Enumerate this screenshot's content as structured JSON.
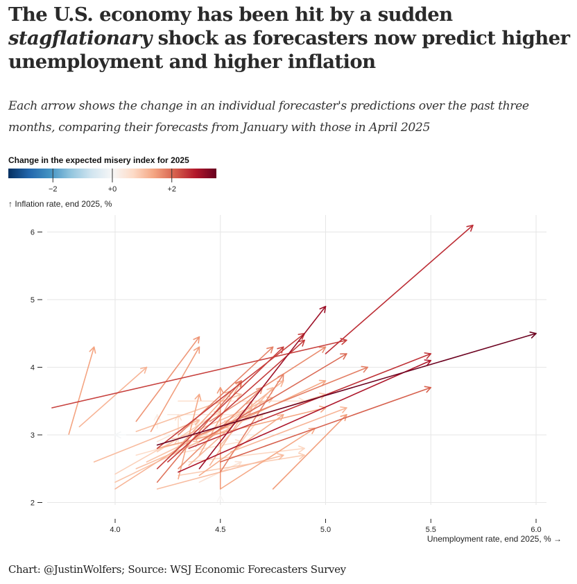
{
  "header": {
    "title_part1": "The U.S. economy has been hit by a sudden",
    "title_italic": "stagflationary",
    "title_part2": " shock as forecasters now predict higher unemployment and higher inflation",
    "subtitle": "Each arrow shows the change in an individual forecaster's predictions over the past three months, comparing their forecasts from January with those in April 2025"
  },
  "footer": {
    "credit": "Chart: @JustinWolfers; Source: WSJ Economic Forecasters Survey"
  },
  "chart_data": {
    "type": "scatter",
    "subtype": "arrows",
    "title": "The U.S. economy has been hit by a sudden stagflationary shock as forecasters now predict higher unemployment and higher inflation",
    "xlabel": "Unemployment rate, end 2025, % →",
    "ylabel": "↑ Inflation rate, end 2025, %",
    "xlim": [
      3.65,
      6.05
    ],
    "ylim": [
      1.9,
      6.2
    ],
    "x_ticks": [
      4.0,
      4.5,
      5.0,
      5.5,
      6.0
    ],
    "x_tick_labels": [
      "4.0",
      "4.5",
      "5.0",
      "5.5",
      "6.0"
    ],
    "y_ticks": [
      2,
      3,
      4,
      5,
      6
    ],
    "y_tick_labels": [
      "2",
      "3",
      "4",
      "5",
      "6"
    ],
    "grid": true,
    "color_legend": {
      "title": "Change in the expected misery index for 2025",
      "domain": [
        -3.5,
        3.5
      ],
      "scheme": "RdBu (reversed)",
      "stops": [
        "#053061",
        "#2166ac",
        "#4393c3",
        "#92c5de",
        "#d1e5f0",
        "#f7f7f7",
        "#fddbc7",
        "#f4a582",
        "#d6604d",
        "#b2182b",
        "#67001f"
      ],
      "ticks": [
        -2,
        0,
        2
      ],
      "tick_labels": [
        "−2",
        "+0",
        "+2"
      ]
    },
    "arrows_note": "Each arrow: from January forecast [x0,y0] to April forecast [x1,y1]; color = change in misery index (Δunemployment + Δinflation)",
    "arrows": [
      {
        "x0": 3.7,
        "y0": 3.4,
        "x1": 5.1,
        "y1": 4.4
      },
      {
        "x0": 3.78,
        "y0": 3.01,
        "x1": 3.9,
        "y1": 4.3
      },
      {
        "x0": 3.83,
        "y0": 3.12,
        "x1": 4.15,
        "y1": 4.0
      },
      {
        "x0": 4.1,
        "y0": 3.2,
        "x1": 4.4,
        "y1": 4.45
      },
      {
        "x0": 4.17,
        "y0": 3.05,
        "x1": 4.4,
        "y1": 4.3
      },
      {
        "x0": 3.9,
        "y0": 2.6,
        "x1": 4.4,
        "y1": 3.22
      },
      {
        "x0": 4.0,
        "y0": 2.2,
        "x1": 4.4,
        "y1": 3.0
      },
      {
        "x0": 4.0,
        "y0": 2.3,
        "x1": 4.4,
        "y1": 2.9
      },
      {
        "x0": 4.0,
        "y0": 2.42,
        "x1": 4.3,
        "y1": 2.95
      },
      {
        "x0": 4.1,
        "y0": 2.5,
        "x1": 4.55,
        "y1": 3.1
      },
      {
        "x0": 4.1,
        "y0": 2.7,
        "x1": 4.45,
        "y1": 3.0
      },
      {
        "x0": 4.2,
        "y0": 2.3,
        "x1": 4.6,
        "y1": 3.8
      },
      {
        "x0": 4.2,
        "y0": 2.5,
        "x1": 4.8,
        "y1": 4.3
      },
      {
        "x0": 4.2,
        "y0": 2.8,
        "x1": 4.9,
        "y1": 4.5
      },
      {
        "x0": 4.25,
        "y0": 2.6,
        "x1": 4.9,
        "y1": 4.4
      },
      {
        "x0": 4.2,
        "y0": 2.8,
        "x1": 5.0,
        "y1": 3.4
      },
      {
        "x0": 4.3,
        "y0": 2.45,
        "x1": 5.5,
        "y1": 4.1
      },
      {
        "x0": 4.2,
        "y0": 2.85,
        "x1": 6.0,
        "y1": 4.5
      },
      {
        "x0": 4.4,
        "y0": 2.5,
        "x1": 5.0,
        "y1": 4.9
      },
      {
        "x0": 5.0,
        "y0": 4.2,
        "x1": 5.7,
        "y1": 6.1
      },
      {
        "x0": 4.35,
        "y0": 2.8,
        "x1": 5.5,
        "y1": 4.2
      },
      {
        "x0": 4.4,
        "y0": 3.0,
        "x1": 5.2,
        "y1": 4.0
      },
      {
        "x0": 4.4,
        "y0": 2.9,
        "x1": 5.1,
        "y1": 4.2
      },
      {
        "x0": 4.45,
        "y0": 3.2,
        "x1": 5.0,
        "y1": 4.3
      },
      {
        "x0": 4.5,
        "y0": 2.6,
        "x1": 5.5,
        "y1": 3.7
      },
      {
        "x0": 4.55,
        "y0": 2.75,
        "x1": 5.1,
        "y1": 3.4
      },
      {
        "x0": 4.45,
        "y0": 3.0,
        "x1": 5.0,
        "y1": 3.8
      },
      {
        "x0": 4.5,
        "y0": 3.1,
        "x1": 5.0,
        "y1": 3.6
      },
      {
        "x0": 4.3,
        "y0": 3.0,
        "x1": 4.75,
        "y1": 4.3
      },
      {
        "x0": 4.4,
        "y0": 2.7,
        "x1": 4.6,
        "y1": 3.8
      },
      {
        "x0": 4.3,
        "y0": 2.5,
        "x1": 4.7,
        "y1": 3.7
      },
      {
        "x0": 4.35,
        "y0": 2.9,
        "x1": 4.7,
        "y1": 3.5
      },
      {
        "x0": 4.45,
        "y0": 2.95,
        "x1": 4.8,
        "y1": 3.8
      },
      {
        "x0": 4.25,
        "y0": 3.3,
        "x1": 4.65,
        "y1": 3.3
      },
      {
        "x0": 4.2,
        "y0": 2.75,
        "x1": 4.5,
        "y1": 3.35
      },
      {
        "x0": 4.15,
        "y0": 2.6,
        "x1": 4.55,
        "y1": 3.2
      },
      {
        "x0": 4.25,
        "y0": 2.65,
        "x1": 4.55,
        "y1": 3.65
      },
      {
        "x0": 4.2,
        "y0": 2.9,
        "x1": 4.4,
        "y1": 3.2
      },
      {
        "x0": 4.2,
        "y0": 3.1,
        "x1": 4.2,
        "y1": 3.3
      },
      {
        "x0": 4.3,
        "y0": 2.75,
        "x1": 4.3,
        "y1": 3.3
      },
      {
        "x0": 4.5,
        "y0": 2.2,
        "x1": 4.5,
        "y1": 3.7
      },
      {
        "x0": 4.3,
        "y0": 2.35,
        "x1": 4.4,
        "y1": 3.6
      },
      {
        "x0": 4.5,
        "y0": 2.45,
        "x1": 4.8,
        "y1": 3.9
      },
      {
        "x0": 4.55,
        "y0": 2.7,
        "x1": 4.7,
        "y1": 3.3
      },
      {
        "x0": 4.4,
        "y0": 2.4,
        "x1": 4.8,
        "y1": 3.3
      },
      {
        "x0": 4.45,
        "y0": 2.55,
        "x1": 4.65,
        "y1": 3.5
      },
      {
        "x0": 4.5,
        "y0": 2.85,
        "x1": 4.75,
        "y1": 3.7
      },
      {
        "x0": 4.35,
        "y0": 2.55,
        "x1": 4.65,
        "y1": 3.4
      },
      {
        "x0": 4.5,
        "y0": 2.2,
        "x1": 4.95,
        "y1": 3.1
      },
      {
        "x0": 4.75,
        "y0": 2.2,
        "x1": 5.1,
        "y1": 3.3
      },
      {
        "x0": 4.2,
        "y0": 2.2,
        "x1": 4.8,
        "y1": 2.7
      },
      {
        "x0": 4.3,
        "y0": 2.4,
        "x1": 4.9,
        "y1": 2.7
      },
      {
        "x0": 4.35,
        "y0": 2.6,
        "x1": 4.9,
        "y1": 2.8
      },
      {
        "x0": 4.4,
        "y0": 2.3,
        "x1": 4.6,
        "y1": 2.6
      },
      {
        "x0": 4.25,
        "y0": 2.7,
        "x1": 4.6,
        "y1": 2.9
      },
      {
        "x0": 4.05,
        "y0": 3.0,
        "x1": 4.0,
        "y1": 3.0
      },
      {
        "x0": 4.5,
        "y0": 2.05,
        "x1": 4.5,
        "y1": 2.1
      },
      {
        "x0": 4.3,
        "y0": 3.5,
        "x1": 4.9,
        "y1": 3.5
      },
      {
        "x0": 4.1,
        "y0": 3.05,
        "x1": 4.6,
        "y1": 3.6
      },
      {
        "x0": 4.3,
        "y0": 2.95,
        "x1": 4.75,
        "y1": 3.55
      }
    ]
  }
}
